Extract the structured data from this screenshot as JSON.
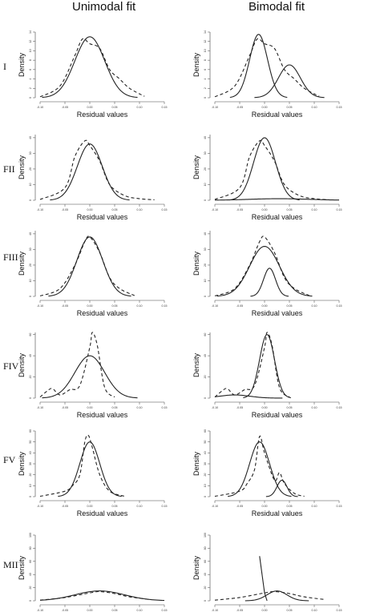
{
  "titles": {
    "left": "Unimodal fit",
    "right": "Bimodal fit"
  },
  "axis": {
    "xlabel": "Residual values",
    "ylabel": "Density"
  },
  "chart_data": [
    {
      "type": "line",
      "panel": "I-unimodal",
      "row_label": "I",
      "xlim": [
        -0.1,
        0.15
      ],
      "ylim": [
        0,
        14
      ],
      "xticks": [
        "-0.10",
        "-0.05",
        "0.00",
        "0.05",
        "0.10",
        "0.15"
      ],
      "yticks": [
        "0",
        "2",
        "4",
        "6",
        "8",
        "10",
        "12",
        "14"
      ],
      "xlabel": "Residual values",
      "ylabel": "Density",
      "curves": [
        {
          "style": "solid",
          "kind": "gaussian",
          "mean": 0.0,
          "sd": 0.03,
          "peak": 13
        },
        {
          "style": "dashed",
          "x": [
            -0.1,
            -0.06,
            -0.03,
            -0.015,
            0.0,
            0.02,
            0.04,
            0.06,
            0.08,
            0.11
          ],
          "y": [
            0.2,
            2.5,
            9,
            12.5,
            11.5,
            10.5,
            6,
            4,
            2,
            0.3
          ]
        }
      ]
    },
    {
      "type": "line",
      "panel": "I-bimodal",
      "row_label": "I",
      "xlim": [
        -0.1,
        0.15
      ],
      "ylim": [
        0,
        14
      ],
      "xticks": [
        "-0.10",
        "-0.05",
        "0.00",
        "0.05",
        "0.10",
        "0.15"
      ],
      "yticks": [
        "0",
        "2",
        "4",
        "6",
        "8",
        "10",
        "12",
        "14"
      ],
      "xlabel": "Residual values",
      "ylabel": "Density",
      "curves": [
        {
          "style": "solid",
          "kind": "gaussian",
          "mean": -0.012,
          "sd": 0.018,
          "peak": 13.5
        },
        {
          "style": "solid",
          "kind": "gaussian",
          "mean": 0.05,
          "sd": 0.022,
          "peak": 7
        },
        {
          "style": "dashed",
          "x": [
            -0.1,
            -0.06,
            -0.03,
            -0.015,
            0.0,
            0.02,
            0.04,
            0.06,
            0.08,
            0.11
          ],
          "y": [
            0.2,
            2.5,
            9,
            12.5,
            11.5,
            10.5,
            6,
            4,
            2,
            0.3
          ]
        }
      ]
    },
    {
      "type": "line",
      "panel": "FII-unimodal",
      "row_label": "FII",
      "xlim": [
        -0.1,
        0.15
      ],
      "ylim": [
        0,
        42
      ],
      "xticks": [
        "-0.10",
        "-0.05",
        "0.00",
        "0.05",
        "0.10",
        "0.15"
      ],
      "yticks": [
        "0",
        "10",
        "20",
        "30",
        "40"
      ],
      "xlabel": "Residual values",
      "ylabel": "Density",
      "curves": [
        {
          "style": "solid",
          "kind": "gaussian",
          "mean": 0.0,
          "sd": 0.025,
          "peak": 36
        },
        {
          "style": "dashed",
          "x": [
            -0.1,
            -0.05,
            -0.03,
            -0.01,
            0.0,
            0.02,
            0.04,
            0.07,
            0.1,
            0.13
          ],
          "y": [
            0.5,
            8,
            28,
            38,
            35,
            25,
            10,
            3,
            1,
            0.3
          ]
        }
      ]
    },
    {
      "type": "line",
      "panel": "FII-bimodal",
      "row_label": "FII",
      "xlim": [
        -0.1,
        0.15
      ],
      "ylim": [
        0,
        42
      ],
      "xticks": [
        "-0.10",
        "-0.05",
        "0.00",
        "0.05",
        "0.10",
        "0.15"
      ],
      "yticks": [
        "0",
        "10",
        "20",
        "30",
        "40"
      ],
      "xlabel": "Residual values",
      "ylabel": "Density",
      "curves": [
        {
          "style": "solid",
          "kind": "gaussian",
          "mean": 0.0,
          "sd": 0.022,
          "peak": 40
        },
        {
          "style": "solid",
          "kind": "gaussian",
          "mean": 0.03,
          "sd": 0.06,
          "peak": 1
        },
        {
          "style": "dashed",
          "x": [
            -0.1,
            -0.05,
            -0.03,
            -0.01,
            0.0,
            0.02,
            0.04,
            0.07,
            0.1,
            0.13
          ],
          "y": [
            0.5,
            8,
            28,
            38,
            35,
            25,
            10,
            3,
            1,
            0.3
          ]
        }
      ]
    },
    {
      "type": "line",
      "panel": "FIII-unimodal",
      "row_label": "FIII",
      "xlim": [
        -0.1,
        0.15
      ],
      "ylim": [
        0,
        42
      ],
      "xticks": [
        "-0.10",
        "-0.05",
        "0.00",
        "0.05",
        "0.10",
        "0.15"
      ],
      "yticks": [
        "0",
        "10",
        "20",
        "30",
        "40"
      ],
      "xlabel": "Residual values",
      "ylabel": "Density",
      "curves": [
        {
          "style": "solid",
          "kind": "gaussian",
          "mean": 0.0,
          "sd": 0.026,
          "peak": 38
        },
        {
          "style": "dashed",
          "x": [
            -0.1,
            -0.06,
            -0.03,
            -0.01,
            0.0,
            0.02,
            0.04,
            0.06,
            0.09
          ],
          "y": [
            0.3,
            5,
            20,
            35,
            38,
            28,
            12,
            5,
            0.5
          ]
        }
      ]
    },
    {
      "type": "line",
      "panel": "FIII-bimodal",
      "row_label": "FIII",
      "xlim": [
        -0.1,
        0.15
      ],
      "ylim": [
        0,
        42
      ],
      "xticks": [
        "-0.10",
        "-0.05",
        "0.00",
        "0.05",
        "0.10",
        "0.15"
      ],
      "yticks": [
        "0",
        "10",
        "20",
        "30",
        "40"
      ],
      "xlabel": "Residual values",
      "ylabel": "Density",
      "curves": [
        {
          "style": "solid",
          "kind": "gaussian",
          "mean": 0.0,
          "sd": 0.03,
          "peak": 32
        },
        {
          "style": "solid",
          "kind": "gaussian",
          "mean": 0.01,
          "sd": 0.012,
          "peak": 18
        },
        {
          "style": "dashed",
          "x": [
            -0.1,
            -0.06,
            -0.03,
            -0.01,
            0.0,
            0.02,
            0.04,
            0.06,
            0.09
          ],
          "y": [
            0.3,
            5,
            20,
            35,
            38,
            28,
            12,
            5,
            0.5
          ]
        }
      ]
    },
    {
      "type": "line",
      "panel": "FIV-unimodal",
      "row_label": "FIV",
      "xlim": [
        -0.1,
        0.15
      ],
      "ylim": [
        0,
        62
      ],
      "xticks": [
        "-0.10",
        "-0.05",
        "0.00",
        "0.05",
        "0.10",
        "0.15"
      ],
      "yticks": [
        "0",
        "20",
        "40",
        "60"
      ],
      "xlabel": "Residual values",
      "ylabel": "Density",
      "curves": [
        {
          "style": "solid",
          "kind": "gaussian",
          "mean": 0.0,
          "sd": 0.03,
          "peak": 40
        },
        {
          "style": "dashed",
          "x": [
            -0.1,
            -0.085,
            -0.075,
            -0.06,
            -0.04,
            -0.02,
            0.0,
            0.005,
            0.015,
            0.03,
            0.05
          ],
          "y": [
            1,
            7,
            9,
            3,
            8,
            12,
            48,
            62,
            50,
            10,
            1
          ]
        }
      ]
    },
    {
      "type": "line",
      "panel": "FIV-bimodal",
      "row_label": "FIV",
      "xlim": [
        -0.1,
        0.15
      ],
      "ylim": [
        0,
        62
      ],
      "xticks": [
        "-0.10",
        "-0.05",
        "0.00",
        "0.05",
        "0.10",
        "0.15"
      ],
      "yticks": [
        "0",
        "20",
        "40",
        "60"
      ],
      "xlabel": "Residual values",
      "ylabel": "Density",
      "curves": [
        {
          "style": "solid",
          "kind": "gaussian",
          "mean": 0.005,
          "sd": 0.015,
          "peak": 60
        },
        {
          "style": "solid",
          "kind": "gaussian",
          "mean": -0.06,
          "sd": 0.03,
          "peak": 3
        },
        {
          "style": "dashed",
          "x": [
            -0.1,
            -0.085,
            -0.075,
            -0.06,
            -0.04,
            -0.02,
            0.0,
            0.005,
            0.015,
            0.03,
            0.05
          ],
          "y": [
            1,
            7,
            9,
            3,
            8,
            12,
            48,
            62,
            50,
            10,
            1
          ]
        }
      ]
    },
    {
      "type": "line",
      "panel": "FV-unimodal",
      "row_label": "FV",
      "xlim": [
        -0.1,
        0.15
      ],
      "ylim": [
        0,
        60
      ],
      "xticks": [
        "-0.10",
        "-0.05",
        "0.00",
        "0.05",
        "0.10",
        "0.15"
      ],
      "yticks": [
        "0",
        "10",
        "20",
        "30",
        "40",
        "50",
        "60"
      ],
      "xlabel": "Residual values",
      "ylabel": "Density",
      "curves": [
        {
          "style": "solid",
          "kind": "gaussian",
          "mean": 0.0,
          "sd": 0.02,
          "peak": 50
        },
        {
          "style": "dashed",
          "x": [
            -0.1,
            -0.05,
            -0.035,
            -0.02,
            -0.01,
            -0.003,
            0.005,
            0.02,
            0.04,
            0.07
          ],
          "y": [
            0.3,
            5,
            10,
            20,
            50,
            56,
            45,
            20,
            5,
            0.3
          ]
        }
      ]
    },
    {
      "type": "line",
      "panel": "FV-bimodal",
      "row_label": "FV",
      "xlim": [
        -0.1,
        0.15
      ],
      "ylim": [
        0,
        60
      ],
      "xticks": [
        "-0.10",
        "-0.05",
        "0.00",
        "0.05",
        "0.10",
        "0.15"
      ],
      "yticks": [
        "0",
        "10",
        "20",
        "30",
        "40",
        "50",
        "60"
      ],
      "xlabel": "Residual values",
      "ylabel": "Density",
      "curves": [
        {
          "style": "solid",
          "kind": "gaussian",
          "mean": -0.01,
          "sd": 0.02,
          "peak": 50
        },
        {
          "style": "solid",
          "kind": "gaussian",
          "mean": 0.035,
          "sd": 0.01,
          "peak": 15
        },
        {
          "style": "dashed",
          "x": [
            -0.1,
            -0.05,
            -0.035,
            -0.02,
            -0.01,
            0.0,
            0.02,
            0.03,
            0.04,
            0.06,
            0.08
          ],
          "y": [
            0.3,
            5,
            12,
            25,
            55,
            40,
            15,
            22,
            12,
            3,
            0.3
          ]
        }
      ]
    },
    {
      "type": "line",
      "panel": "MII-unimodal",
      "row_label": "MII",
      "xlim": [
        -0.1,
        0.15
      ],
      "ylim": [
        0,
        100
      ],
      "xticks": [
        "-0.10",
        "-0.05",
        "0.00",
        "0.05",
        "0.10",
        "0.15"
      ],
      "yticks": [
        "0",
        "20",
        "40",
        "60",
        "80",
        "100"
      ],
      "xlabel": "Residual values",
      "ylabel": "Density",
      "curves": [
        {
          "style": "solid",
          "kind": "gaussian",
          "mean": 0.02,
          "sd": 0.05,
          "peak": 15
        },
        {
          "style": "dashed",
          "x": [
            -0.1,
            -0.05,
            0.0,
            0.02,
            0.05,
            0.08,
            0.12
          ],
          "y": [
            1,
            5,
            12,
            14,
            11,
            6,
            2
          ]
        }
      ]
    },
    {
      "type": "line",
      "panel": "MII-bimodal",
      "row_label": "MII",
      "xlim": [
        -0.1,
        0.15
      ],
      "ylim": [
        0,
        100
      ],
      "xticks": [
        "-0.10",
        "-0.05",
        "0.00",
        "0.05",
        "0.10",
        "0.15"
      ],
      "yticks": [
        "0",
        "20",
        "40",
        "60",
        "80",
        "100"
      ],
      "xlabel": "Residual values",
      "ylabel": "Density",
      "curves": [
        {
          "style": "solid",
          "kind": "gaussian",
          "mean": 0.025,
          "sd": 0.02,
          "peak": 15
        },
        {
          "style": "solid",
          "x": [
            -0.01,
            -0.005,
            0.0,
            0.005
          ],
          "y": [
            68,
            40,
            12,
            0
          ]
        },
        {
          "style": "dashed",
          "x": [
            -0.1,
            -0.05,
            0.0,
            0.02,
            0.05,
            0.08,
            0.12
          ],
          "y": [
            1,
            5,
            12,
            14,
            11,
            6,
            2
          ]
        }
      ]
    }
  ]
}
